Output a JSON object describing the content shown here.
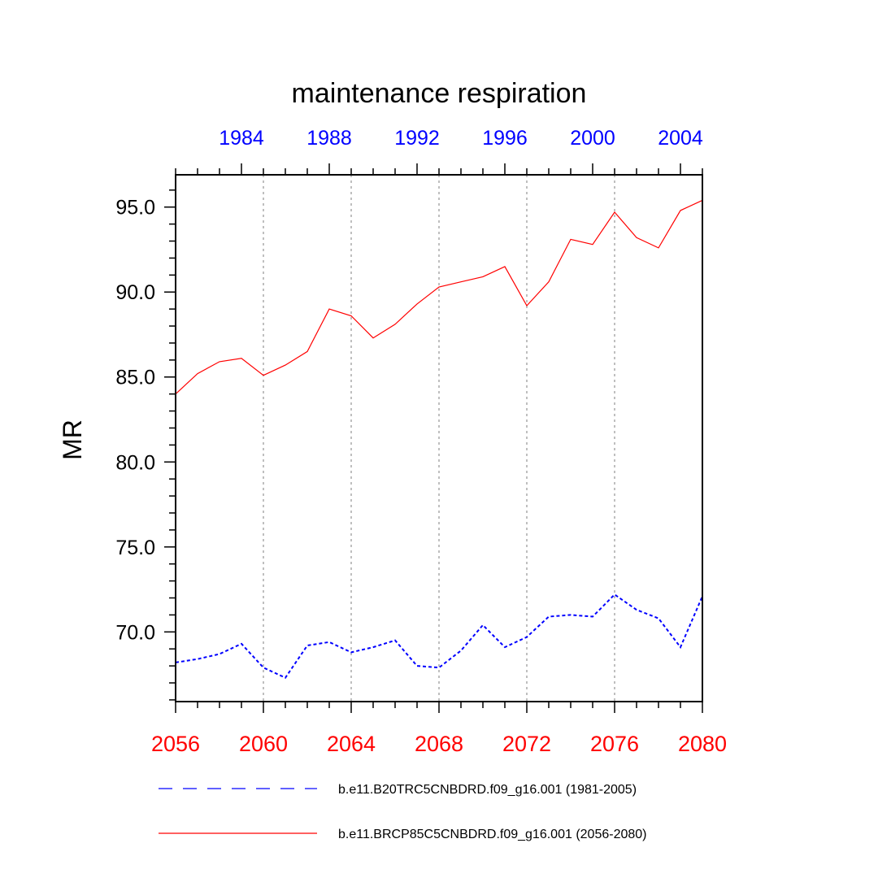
{
  "chart_data": {
    "type": "line",
    "title": "maintenance respiration",
    "ylabel": "MR",
    "xlabel": "",
    "ylim": [
      65.9,
      96.9
    ],
    "yticks": [
      "95.0",
      "90.0",
      "85.0",
      "80.0",
      "75.0",
      "70.0"
    ],
    "ytick_values": [
      95,
      90,
      85,
      80,
      75,
      70
    ],
    "x_bottom": {
      "range": [
        2056,
        2080
      ],
      "ticks": [
        "2056",
        "2060",
        "2064",
        "2068",
        "2072",
        "2076",
        "2080"
      ],
      "tick_values": [
        2056,
        2060,
        2064,
        2068,
        2072,
        2076,
        2080
      ],
      "color": "#ff0000"
    },
    "x_top": {
      "range": [
        1981,
        2005
      ],
      "ticks": [
        "1984",
        "1988",
        "1992",
        "1996",
        "2000",
        "2004"
      ],
      "tick_values": [
        1984,
        1988,
        1992,
        1996,
        2000,
        2004
      ],
      "color": "#0000ff"
    },
    "gridlines_x": [
      2060,
      2064,
      2068,
      2072,
      2076
    ],
    "series": [
      {
        "name": "b.e11.B20TRC5CNBDRD.f09_g16.001 (1981-2005)",
        "color": "#0000ff",
        "style": "dashed",
        "x": [
          2056,
          2057,
          2058,
          2059,
          2060,
          2061,
          2062,
          2063,
          2064,
          2065,
          2066,
          2067,
          2068,
          2069,
          2070,
          2071,
          2072,
          2073,
          2074,
          2075,
          2076,
          2077,
          2078,
          2079,
          2080
        ],
        "values": [
          68.2,
          68.4,
          68.7,
          69.3,
          67.9,
          67.3,
          69.2,
          69.4,
          68.8,
          69.1,
          69.5,
          68.0,
          67.9,
          68.9,
          70.4,
          69.1,
          69.7,
          70.9,
          71.0,
          70.9,
          72.2,
          71.3,
          70.8,
          69.1,
          72.1
        ]
      },
      {
        "name": "b.e11.BRCP85C5CNBDRD.f09_g16.001 (2056-2080)",
        "color": "#ff0000",
        "style": "solid",
        "x": [
          2056,
          2057,
          2058,
          2059,
          2060,
          2061,
          2062,
          2063,
          2064,
          2065,
          2066,
          2067,
          2068,
          2069,
          2070,
          2071,
          2072,
          2073,
          2074,
          2075,
          2076,
          2077,
          2078,
          2079,
          2080
        ],
        "values": [
          84.0,
          85.2,
          85.9,
          86.1,
          85.1,
          85.7,
          86.5,
          89.0,
          88.6,
          87.3,
          88.1,
          89.3,
          90.3,
          90.6,
          90.9,
          91.5,
          89.2,
          90.6,
          93.1,
          92.8,
          94.7,
          93.2,
          92.6,
          94.8,
          95.4
        ]
      }
    ],
    "legend": {
      "placement": "bottom",
      "entries": [
        {
          "label": "b.e11.B20TRC5CNBDRD.f09_g16.001 (1981-2005)",
          "color": "#0000ff",
          "style": "dashed"
        },
        {
          "label": "b.e11.BRCP85C5CNBDRD.f09_g16.001 (2056-2080)",
          "color": "#ff0000",
          "style": "solid"
        }
      ]
    }
  }
}
